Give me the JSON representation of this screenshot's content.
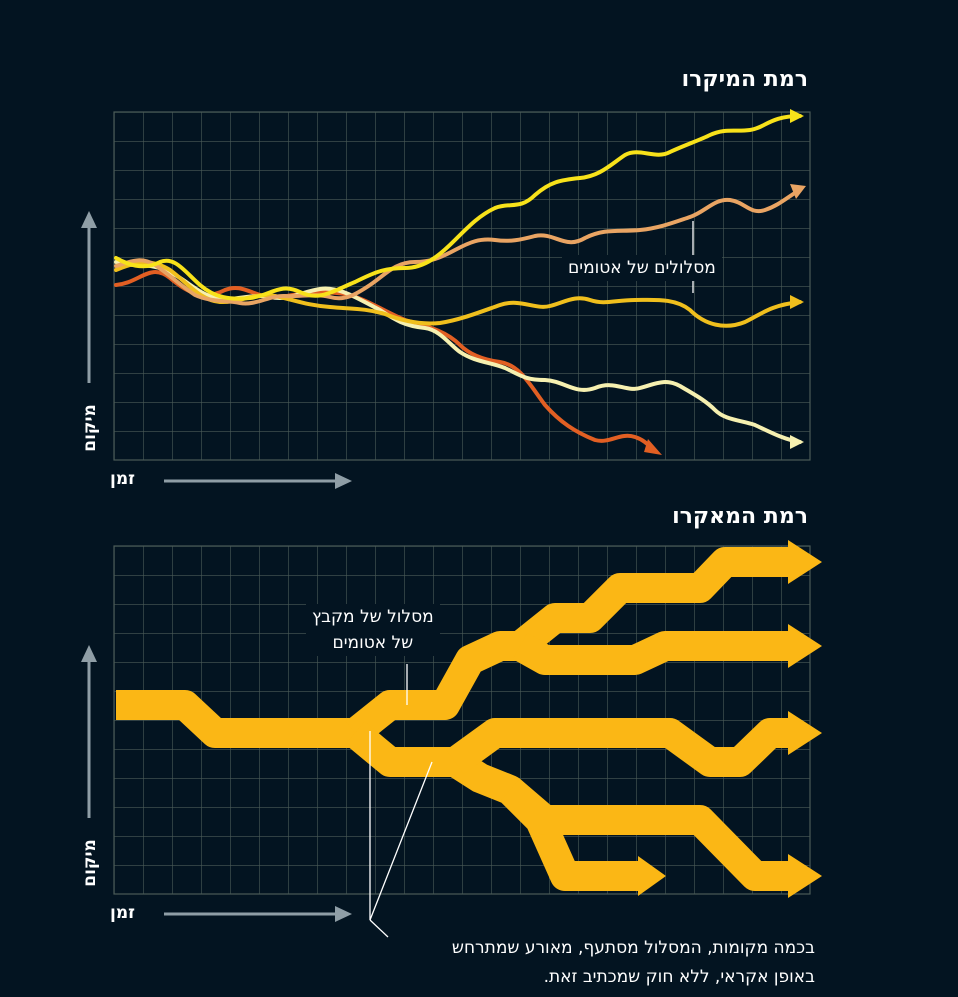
{
  "micro": {
    "title": "רמת המיקרו",
    "y_axis_label": "מיקום",
    "x_axis_label": "זמן",
    "annotation": "מסלולים של אטומים"
  },
  "macro": {
    "title": "רמת המאקרו",
    "y_axis_label": "מיקום",
    "x_axis_label": "זמן",
    "annotation_line1": "מסלול של מקבץ",
    "annotation_line2": "של אטומים",
    "caption_line1": "בכמה מקומות, המסלול מסתעף, מאורע שמתרחש",
    "caption_line2": "באופן אקראי, ללא חוק שמכתיב זאת."
  },
  "colors": {
    "background": "#031421",
    "grid": "#4a5b57",
    "axis_arrow": "#8f9ea6",
    "yellow": "#f8e21a",
    "peach": "#e9a463",
    "gold": "#f0bf1d",
    "cream": "#f6f0b0",
    "orange_red": "#e25f23",
    "macro_band": "#fbb715"
  }
}
